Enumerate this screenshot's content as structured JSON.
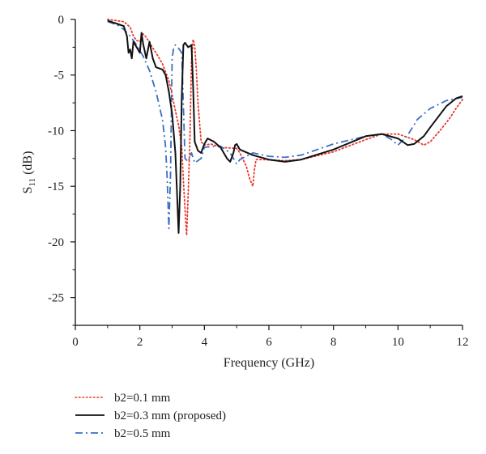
{
  "chart_data": {
    "type": "line",
    "xlabel": "Frequency (GHz)",
    "ylabel": {
      "main": "S",
      "sub": "11",
      "unit": " (dB)"
    },
    "xlim": [
      0,
      12
    ],
    "ylim": [
      -27.5,
      0
    ],
    "xticks": [
      0,
      2,
      4,
      6,
      8,
      10,
      12
    ],
    "yticks": [
      0,
      -5,
      -10,
      -15,
      -20,
      -25
    ],
    "grid": false,
    "legend_position": "bottom-left",
    "series": [
      {
        "name": "b2=0.1 mm",
        "color": "#e8392b",
        "dash": "dotted",
        "points": [
          [
            1.0,
            0.0
          ],
          [
            1.5,
            -0.2
          ],
          [
            1.7,
            -0.7
          ],
          [
            1.8,
            -1.5
          ],
          [
            1.9,
            -1.9
          ],
          [
            2.0,
            -2.0
          ],
          [
            2.1,
            -1.3
          ],
          [
            2.2,
            -1.6
          ],
          [
            2.3,
            -2.1
          ],
          [
            2.5,
            -3.0
          ],
          [
            2.7,
            -4.0
          ],
          [
            2.9,
            -5.5
          ],
          [
            3.0,
            -6.8
          ],
          [
            3.1,
            -8.2
          ],
          [
            3.2,
            -9.5
          ],
          [
            3.3,
            -11.5
          ],
          [
            3.35,
            -14.5
          ],
          [
            3.4,
            -17.0
          ],
          [
            3.45,
            -19.4
          ],
          [
            3.5,
            -15.5
          ],
          [
            3.55,
            -11.0
          ],
          [
            3.6,
            -3.8
          ],
          [
            3.65,
            -1.8
          ],
          [
            3.7,
            -2.4
          ],
          [
            3.75,
            -4.5
          ],
          [
            3.8,
            -7.5
          ],
          [
            3.9,
            -11.0
          ],
          [
            4.0,
            -11.3
          ],
          [
            4.2,
            -11.2
          ],
          [
            4.5,
            -11.5
          ],
          [
            5.0,
            -11.6
          ],
          [
            5.1,
            -12.0
          ],
          [
            5.3,
            -13.2
          ],
          [
            5.4,
            -14.3
          ],
          [
            5.5,
            -15.0
          ],
          [
            5.55,
            -13.5
          ],
          [
            5.6,
            -12.6
          ],
          [
            5.8,
            -12.6
          ],
          [
            6.5,
            -12.7
          ],
          [
            7.0,
            -12.6
          ],
          [
            8.0,
            -11.9
          ],
          [
            9.0,
            -10.8
          ],
          [
            9.5,
            -10.3
          ],
          [
            10.0,
            -10.3
          ],
          [
            10.5,
            -10.8
          ],
          [
            10.8,
            -11.3
          ],
          [
            11.0,
            -11.0
          ],
          [
            11.3,
            -10.0
          ],
          [
            11.6,
            -8.9
          ],
          [
            11.8,
            -8.0
          ],
          [
            12.0,
            -7.2
          ]
        ]
      },
      {
        "name": "b2=0.3 mm (proposed)",
        "color": "#111111",
        "dash": "solid",
        "points": [
          [
            1.0,
            -0.1
          ],
          [
            1.3,
            -0.4
          ],
          [
            1.5,
            -0.6
          ],
          [
            1.6,
            -1.5
          ],
          [
            1.65,
            -3.0
          ],
          [
            1.7,
            -2.7
          ],
          [
            1.75,
            -3.5
          ],
          [
            1.8,
            -2.0
          ],
          [
            1.9,
            -2.5
          ],
          [
            2.0,
            -3.0
          ],
          [
            2.05,
            -1.2
          ],
          [
            2.1,
            -2.2
          ],
          [
            2.2,
            -3.5
          ],
          [
            2.3,
            -2.0
          ],
          [
            2.4,
            -3.5
          ],
          [
            2.5,
            -4.3
          ],
          [
            2.7,
            -4.5
          ],
          [
            2.8,
            -5.0
          ],
          [
            2.9,
            -6.5
          ],
          [
            3.0,
            -8.5
          ],
          [
            3.1,
            -12.0
          ],
          [
            3.15,
            -15.5
          ],
          [
            3.2,
            -19.2
          ],
          [
            3.25,
            -15.0
          ],
          [
            3.3,
            -7.0
          ],
          [
            3.35,
            -2.3
          ],
          [
            3.4,
            -2.1
          ],
          [
            3.5,
            -2.5
          ],
          [
            3.6,
            -2.3
          ],
          [
            3.65,
            -6.0
          ],
          [
            3.7,
            -11.0
          ],
          [
            3.8,
            -11.8
          ],
          [
            3.9,
            -12.0
          ],
          [
            4.0,
            -11.2
          ],
          [
            4.1,
            -10.7
          ],
          [
            4.3,
            -11.0
          ],
          [
            4.5,
            -11.5
          ],
          [
            4.7,
            -12.5
          ],
          [
            4.8,
            -12.8
          ],
          [
            4.9,
            -12.0
          ],
          [
            4.95,
            -11.3
          ],
          [
            5.0,
            -11.2
          ],
          [
            5.1,
            -11.7
          ],
          [
            5.5,
            -12.2
          ],
          [
            6.0,
            -12.6
          ],
          [
            6.5,
            -12.8
          ],
          [
            7.0,
            -12.6
          ],
          [
            8.0,
            -11.7
          ],
          [
            9.0,
            -10.5
          ],
          [
            9.5,
            -10.3
          ],
          [
            10.0,
            -10.7
          ],
          [
            10.3,
            -11.3
          ],
          [
            10.5,
            -11.2
          ],
          [
            10.8,
            -10.5
          ],
          [
            11.0,
            -9.7
          ],
          [
            11.5,
            -7.8
          ],
          [
            11.8,
            -7.1
          ],
          [
            12.0,
            -6.9
          ]
        ]
      },
      {
        "name": "b2=0.5 mm",
        "color": "#3b6fc4",
        "dash": "dashdot",
        "points": [
          [
            1.0,
            -0.2
          ],
          [
            1.3,
            -0.5
          ],
          [
            1.5,
            -0.9
          ],
          [
            1.7,
            -1.5
          ],
          [
            1.9,
            -2.3
          ],
          [
            2.1,
            -3.3
          ],
          [
            2.3,
            -4.6
          ],
          [
            2.5,
            -6.5
          ],
          [
            2.7,
            -9.0
          ],
          [
            2.8,
            -11.5
          ],
          [
            2.85,
            -14.5
          ],
          [
            2.9,
            -18.8
          ],
          [
            2.95,
            -14.0
          ],
          [
            3.0,
            -3.5
          ],
          [
            3.05,
            -2.5
          ],
          [
            3.1,
            -2.3
          ],
          [
            3.2,
            -2.6
          ],
          [
            3.3,
            -3.0
          ],
          [
            3.4,
            -12.5
          ],
          [
            3.5,
            -12.8
          ],
          [
            3.6,
            -12.0
          ],
          [
            3.7,
            -12.9
          ],
          [
            3.9,
            -12.5
          ],
          [
            4.0,
            -11.5
          ],
          [
            4.3,
            -11.4
          ],
          [
            4.5,
            -11.4
          ],
          [
            4.8,
            -12.0
          ],
          [
            5.0,
            -13.0
          ],
          [
            5.1,
            -12.6
          ],
          [
            5.5,
            -12.0
          ],
          [
            6.0,
            -12.3
          ],
          [
            6.5,
            -12.4
          ],
          [
            7.0,
            -12.2
          ],
          [
            8.0,
            -11.2
          ],
          [
            9.0,
            -10.5
          ],
          [
            9.5,
            -10.3
          ],
          [
            9.8,
            -10.8
          ],
          [
            10.0,
            -11.3
          ],
          [
            10.3,
            -10.4
          ],
          [
            10.6,
            -9.0
          ],
          [
            11.0,
            -8.0
          ],
          [
            11.5,
            -7.3
          ],
          [
            12.0,
            -7.0
          ]
        ]
      }
    ]
  }
}
